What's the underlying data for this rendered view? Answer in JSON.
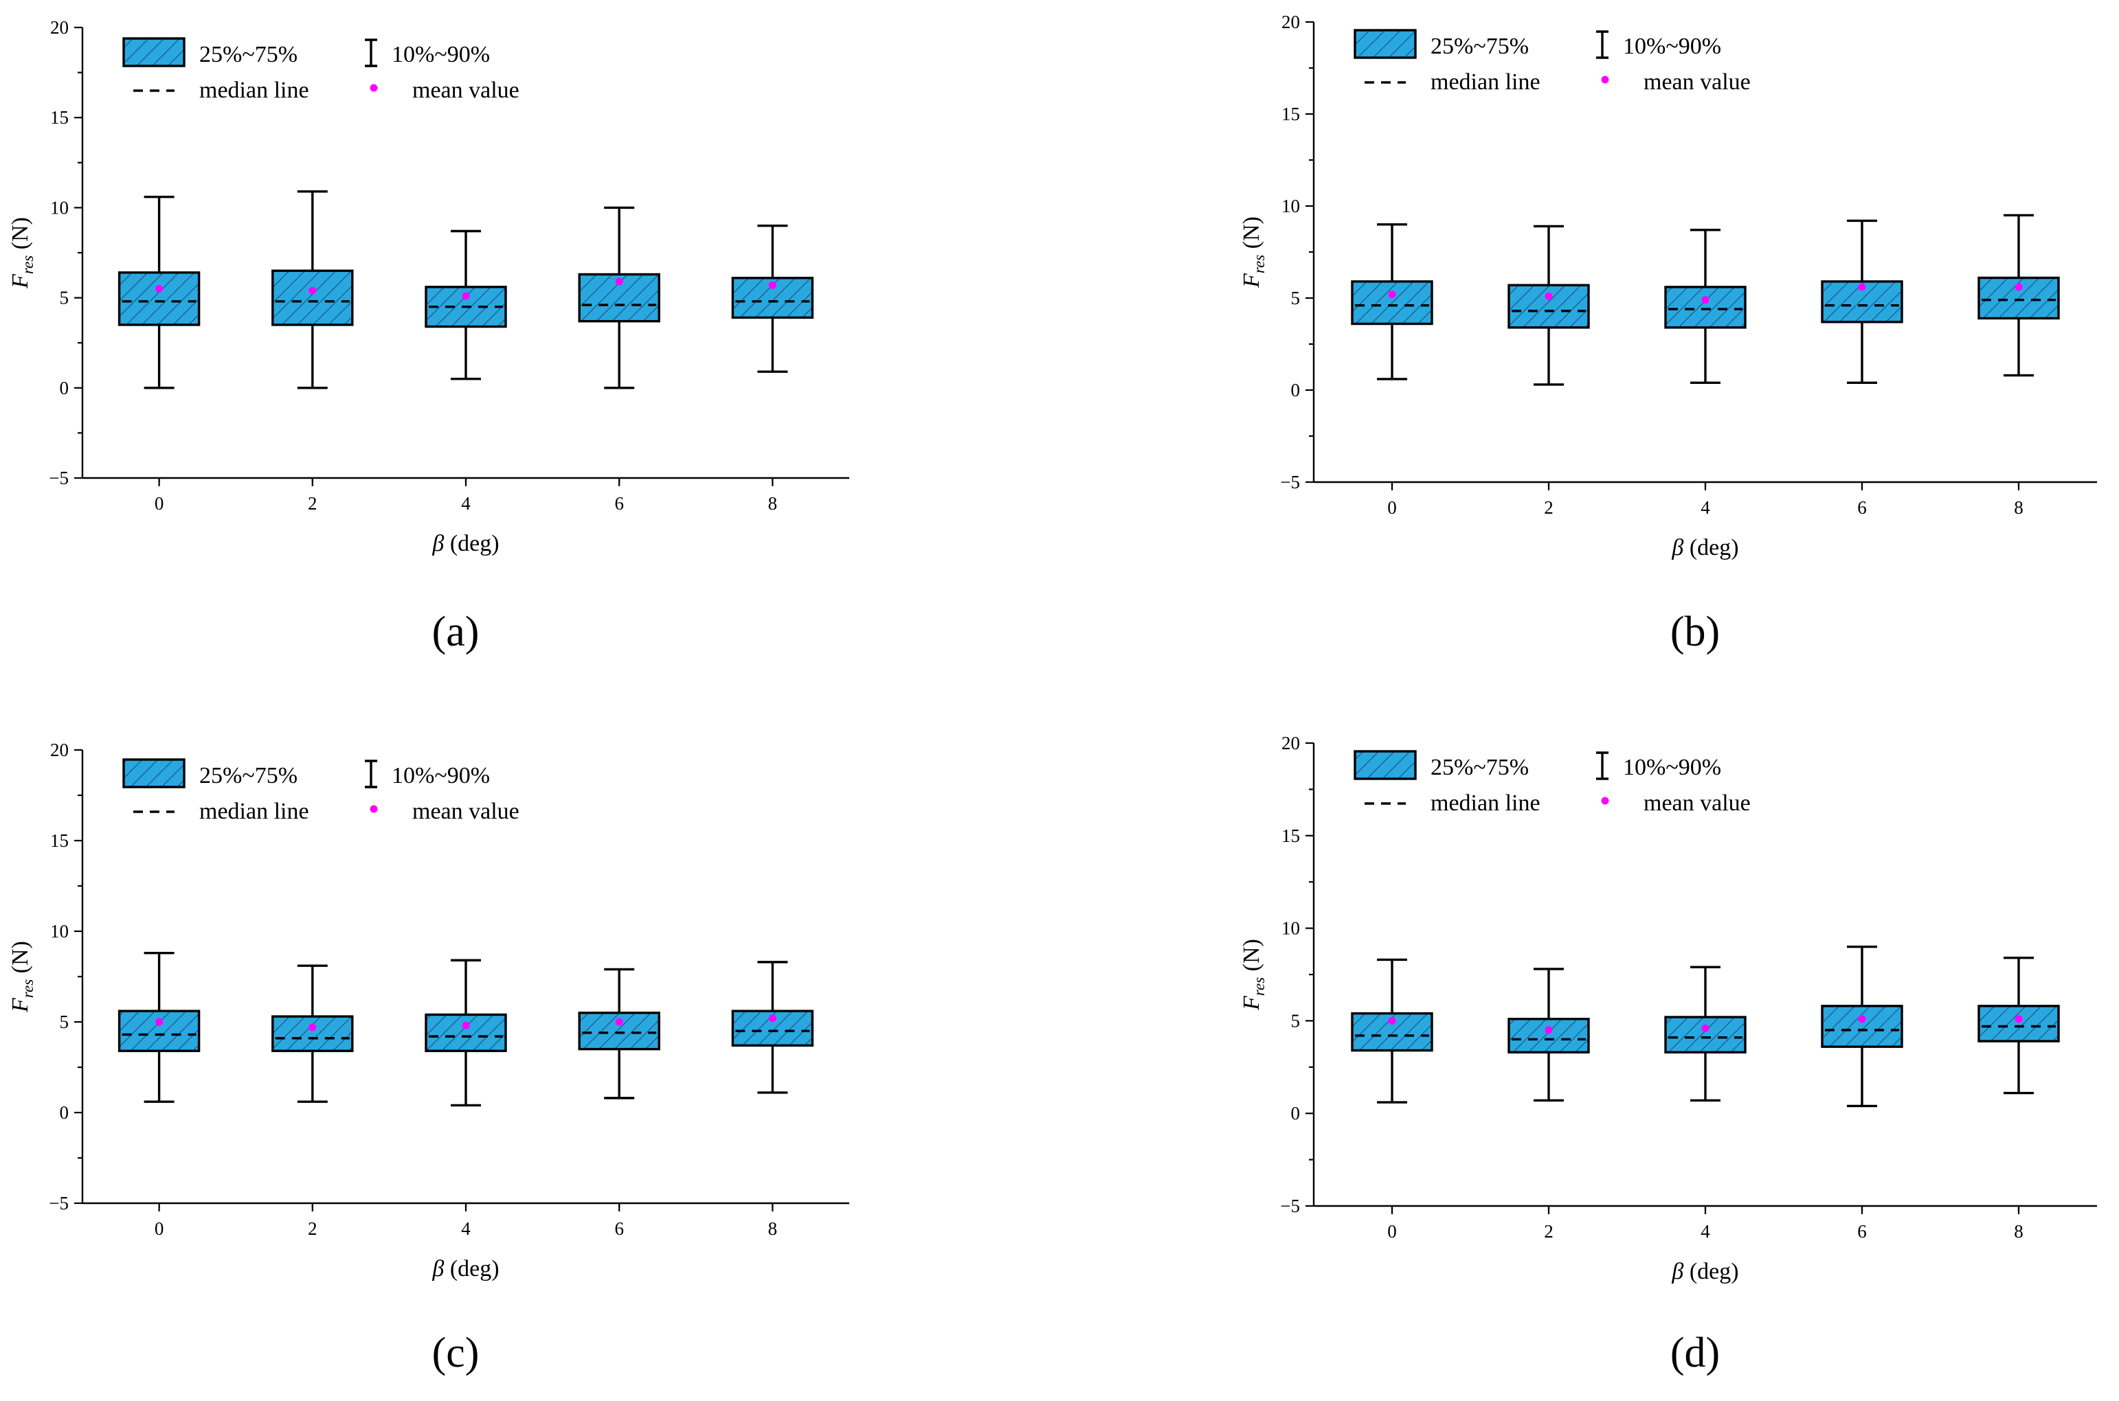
{
  "figure": {
    "legend": {
      "box_label": "25%~75%",
      "whisker_label": "10%~90%",
      "median_label": "median line",
      "mean_label": "mean value"
    },
    "colors": {
      "box_fill": "#29A8E0",
      "hatch": "#1a4f7a",
      "mean": "#FF00FF",
      "axis": "#000000"
    }
  },
  "chart_data": [
    {
      "panel": "a",
      "type": "box",
      "panel_label": "(a)",
      "xlabel_symbol": "β",
      "xlabel_unit": "(deg)",
      "ylabel_symbol": "F",
      "ylabel_sub": "res",
      "ylabel_unit": "(N)",
      "ylim": [
        -5,
        20
      ],
      "yticks": [
        -5,
        0,
        5,
        10,
        15,
        20
      ],
      "ytick_labels": [
        "−5",
        "0",
        "5",
        "10",
        "15",
        "20"
      ],
      "xlim": [
        -1,
        9
      ],
      "xticks": [
        0,
        2,
        4,
        6,
        8
      ],
      "xtick_labels": [
        "0",
        "2",
        "4",
        "6",
        "8"
      ],
      "boxes": [
        {
          "x": 0,
          "p10": 0.0,
          "q1": 3.5,
          "median": 4.8,
          "q3": 6.4,
          "p90": 10.6,
          "mean": 5.5
        },
        {
          "x": 2,
          "p10": 0.0,
          "q1": 3.5,
          "median": 4.8,
          "q3": 6.5,
          "p90": 10.9,
          "mean": 5.4
        },
        {
          "x": 4,
          "p10": 0.5,
          "q1": 3.4,
          "median": 4.5,
          "q3": 5.6,
          "p90": 8.7,
          "mean": 5.1
        },
        {
          "x": 6,
          "p10": 0.0,
          "q1": 3.7,
          "median": 4.6,
          "q3": 6.3,
          "p90": 10.0,
          "mean": 5.9
        },
        {
          "x": 8,
          "p10": 0.9,
          "q1": 3.9,
          "median": 4.8,
          "q3": 6.1,
          "p90": 9.0,
          "mean": 5.7
        }
      ]
    },
    {
      "panel": "b",
      "type": "box",
      "panel_label": "(b)",
      "xlabel_symbol": "β",
      "xlabel_unit": "(deg)",
      "ylabel_symbol": "F",
      "ylabel_sub": "res",
      "ylabel_unit": "(N)",
      "ylim": [
        -5,
        20
      ],
      "yticks": [
        -5,
        0,
        5,
        10,
        15,
        20
      ],
      "ytick_labels": [
        "−5",
        "0",
        "5",
        "10",
        "15",
        "20"
      ],
      "xlim": [
        -1,
        9
      ],
      "xticks": [
        0,
        2,
        4,
        6,
        8
      ],
      "xtick_labels": [
        "0",
        "2",
        "4",
        "6",
        "8"
      ],
      "boxes": [
        {
          "x": 0,
          "p10": 0.6,
          "q1": 3.6,
          "median": 4.6,
          "q3": 5.9,
          "p90": 9.0,
          "mean": 5.2
        },
        {
          "x": 2,
          "p10": 0.3,
          "q1": 3.4,
          "median": 4.3,
          "q3": 5.7,
          "p90": 8.9,
          "mean": 5.1
        },
        {
          "x": 4,
          "p10": 0.4,
          "q1": 3.4,
          "median": 4.4,
          "q3": 5.6,
          "p90": 8.7,
          "mean": 4.9
        },
        {
          "x": 6,
          "p10": 0.4,
          "q1": 3.7,
          "median": 4.6,
          "q3": 5.9,
          "p90": 9.2,
          "mean": 5.6
        },
        {
          "x": 8,
          "p10": 0.8,
          "q1": 3.9,
          "median": 4.9,
          "q3": 6.1,
          "p90": 9.5,
          "mean": 5.6
        }
      ]
    },
    {
      "panel": "c",
      "type": "box",
      "panel_label": "(c)",
      "xlabel_symbol": "β",
      "xlabel_unit": "(deg)",
      "ylabel_symbol": "F",
      "ylabel_sub": "res",
      "ylabel_unit": "(N)",
      "ylim": [
        -5,
        20
      ],
      "yticks": [
        -5,
        0,
        5,
        10,
        15,
        20
      ],
      "ytick_labels": [
        "−5",
        "0",
        "5",
        "10",
        "15",
        "20"
      ],
      "xlim": [
        -1,
        9
      ],
      "xticks": [
        0,
        2,
        4,
        6,
        8
      ],
      "xtick_labels": [
        "0",
        "2",
        "4",
        "6",
        "8"
      ],
      "boxes": [
        {
          "x": 0,
          "p10": 0.6,
          "q1": 3.4,
          "median": 4.3,
          "q3": 5.6,
          "p90": 8.8,
          "mean": 5.0
        },
        {
          "x": 2,
          "p10": 0.6,
          "q1": 3.4,
          "median": 4.1,
          "q3": 5.3,
          "p90": 8.1,
          "mean": 4.7
        },
        {
          "x": 4,
          "p10": 0.4,
          "q1": 3.4,
          "median": 4.2,
          "q3": 5.4,
          "p90": 8.4,
          "mean": 4.8
        },
        {
          "x": 6,
          "p10": 0.8,
          "q1": 3.5,
          "median": 4.4,
          "q3": 5.5,
          "p90": 7.9,
          "mean": 5.0
        },
        {
          "x": 8,
          "p10": 1.1,
          "q1": 3.7,
          "median": 4.5,
          "q3": 5.6,
          "p90": 8.3,
          "mean": 5.2
        }
      ]
    },
    {
      "panel": "d",
      "type": "box",
      "panel_label": "(d)",
      "xlabel_symbol": "β",
      "xlabel_unit": "(deg)",
      "ylabel_symbol": "F",
      "ylabel_sub": "res",
      "ylabel_unit": "(N)",
      "ylim": [
        -5,
        20
      ],
      "yticks": [
        -5,
        0,
        5,
        10,
        15,
        20
      ],
      "ytick_labels": [
        "−5",
        "0",
        "5",
        "10",
        "15",
        "20"
      ],
      "xlim": [
        -1,
        9
      ],
      "xticks": [
        0,
        2,
        4,
        6,
        8
      ],
      "xtick_labels": [
        "0",
        "2",
        "4",
        "6",
        "8"
      ],
      "boxes": [
        {
          "x": 0,
          "p10": 0.6,
          "q1": 3.4,
          "median": 4.2,
          "q3": 5.4,
          "p90": 8.3,
          "mean": 5.0
        },
        {
          "x": 2,
          "p10": 0.7,
          "q1": 3.3,
          "median": 4.0,
          "q3": 5.1,
          "p90": 7.8,
          "mean": 4.5
        },
        {
          "x": 4,
          "p10": 0.7,
          "q1": 3.3,
          "median": 4.1,
          "q3": 5.2,
          "p90": 7.9,
          "mean": 4.6
        },
        {
          "x": 6,
          "p10": 0.4,
          "q1": 3.6,
          "median": 4.5,
          "q3": 5.8,
          "p90": 9.0,
          "mean": 5.1
        },
        {
          "x": 8,
          "p10": 1.1,
          "q1": 3.9,
          "median": 4.7,
          "q3": 5.8,
          "p90": 8.4,
          "mean": 5.1
        }
      ]
    }
  ]
}
